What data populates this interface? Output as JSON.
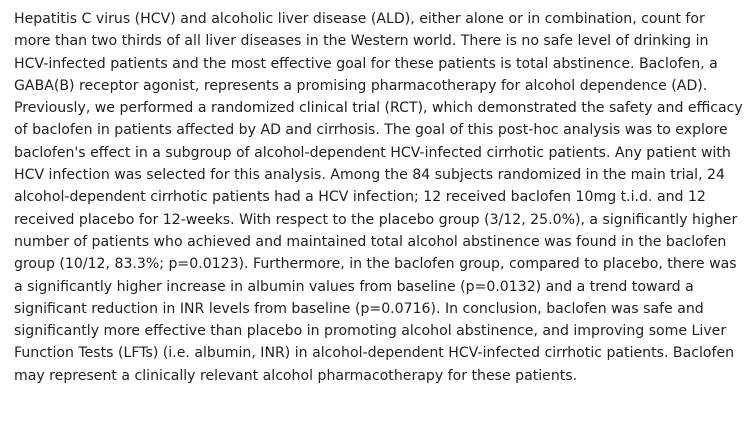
{
  "abstract": {
    "lines": [
      "Hepatitis C virus (HCV) and alcoholic liver disease (ALD), either alone or in combination, count for",
      "more than two thirds of all liver diseases in the Western world. There is no safe level of drinking in",
      "HCV-infected patients and the most effective goal for these patients is total abstinence. Baclofen, a",
      "GABA(B) receptor agonist, represents a promising pharmacotherapy for alcohol dependence (AD).",
      "Previously, we performed a randomized clinical trial (RCT), which demonstrated the safety and efficacy",
      "of baclofen in patients affected by AD and cirrhosis. The goal of this post-hoc analysis was to explore",
      "baclofen's effect in a subgroup of alcohol-dependent HCV-infected cirrhotic patients. Any patient with",
      "HCV infection was selected for this analysis. Among the 84 subjects randomized in the main trial, 24",
      "alcohol-dependent cirrhotic patients had a HCV infection; 12 received baclofen 10mg t.i.d. and 12",
      "received placebo for 12-weeks. With respect to the placebo group (3/12, 25.0%), a significantly higher",
      "number of patients who achieved and maintained total alcohol abstinence was found in the baclofen",
      "group (10/12, 83.3%; p=0.0123). Furthermore, in the baclofen group, compared to placebo, there was",
      "a significantly higher increase in albumin values from baseline (p=0.0132) and a trend toward a",
      "significant reduction in INR levels from baseline (p=0.0716). In conclusion, baclofen was safe and",
      "significantly more effective than placebo in promoting alcohol abstinence, and improving some Liver",
      "Function Tests (LFTs) (i.e. albumin, INR) in alcohol-dependent HCV-infected cirrhotic patients. Baclofen",
      "may represent a clinically relevant alcohol pharmacotherapy for these patients."
    ]
  }
}
